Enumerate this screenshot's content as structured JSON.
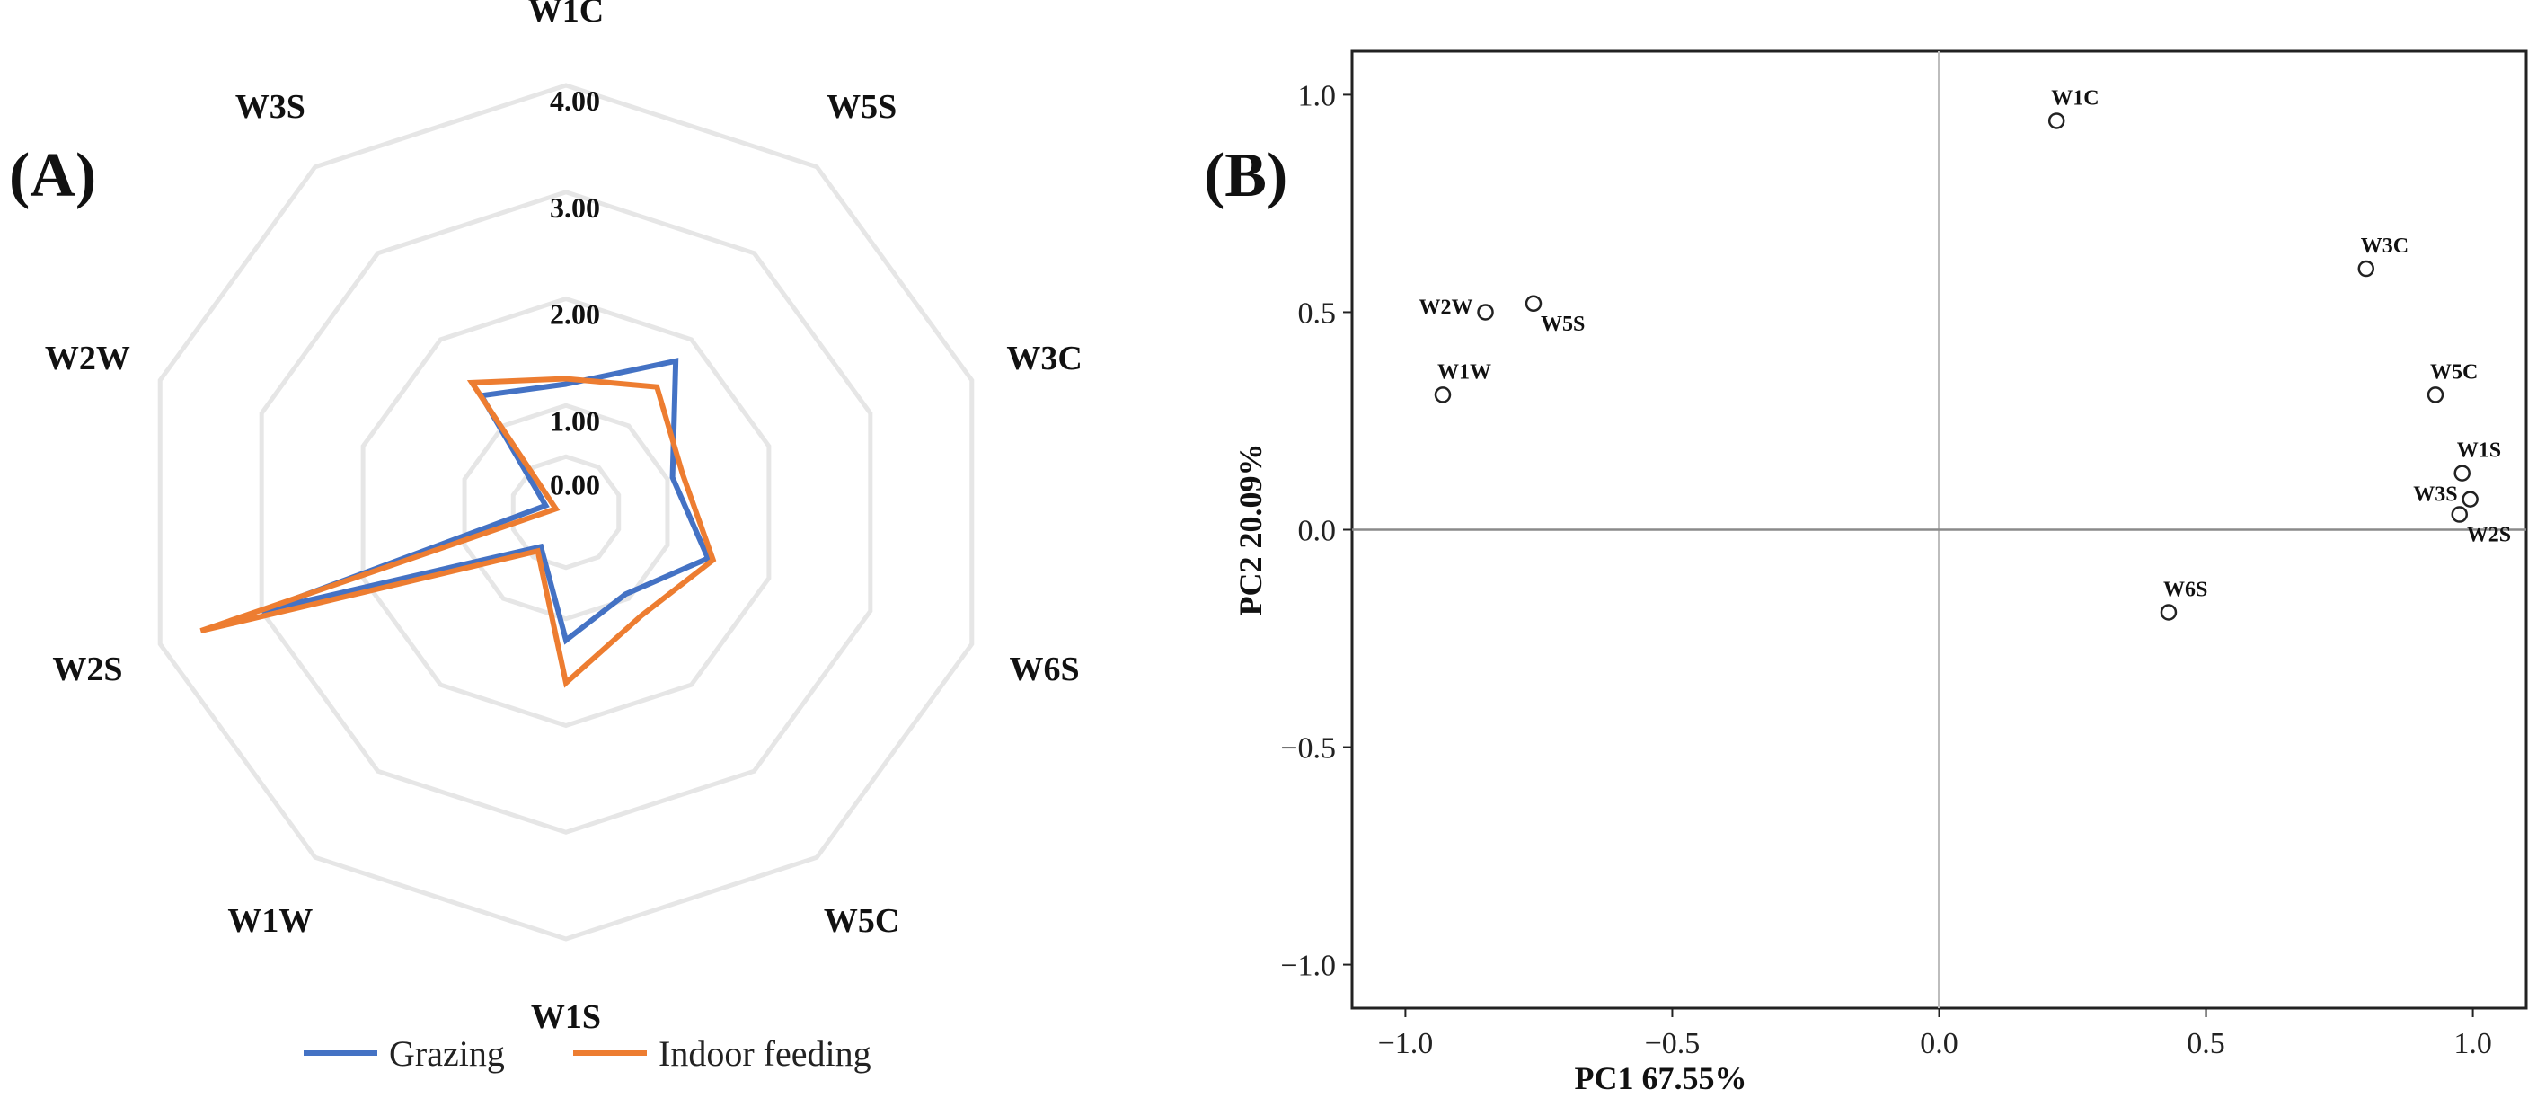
{
  "colors": {
    "grazing": "#4472C4",
    "indoor": "#ED7D31",
    "grid": "#e6e6e6",
    "axis": "#555555",
    "frame": "#222222"
  },
  "chart_data": [
    {
      "panel": "(A)",
      "type": "radar",
      "categories": [
        "W1C",
        "W5S",
        "W3C",
        "W6S",
        "W5C",
        "W1S",
        "W1W",
        "W2S",
        "W2W",
        "W3S"
      ],
      "radial_ticks": [
        "0.00",
        "1.00",
        "2.00",
        "3.00",
        "4.00"
      ],
      "rmax": 4.0,
      "series": [
        {
          "name": "Grazing",
          "color_key": "grazing",
          "values": [
            1.2,
            1.75,
            1.05,
            1.4,
            0.95,
            1.2,
            0.4,
            3.0,
            0.2,
            1.35
          ]
        },
        {
          "name": "Indoor feeding",
          "color_key": "indoor",
          "values": [
            1.25,
            1.45,
            1.15,
            1.45,
            1.2,
            1.6,
            0.45,
            3.6,
            0.1,
            1.5
          ]
        }
      ],
      "legend": "bottom"
    },
    {
      "panel": "(B)",
      "type": "scatter",
      "xlabel": "PC1 67.55%",
      "ylabel": "PC2 20.09%",
      "xlim": [
        -1.1,
        1.1
      ],
      "ylim": [
        -1.1,
        1.1
      ],
      "xticks": [
        "−1.0",
        "−0.5",
        "0.0",
        "0.5",
        "1.0"
      ],
      "yticks": [
        "1.0",
        "0.5",
        "0.0",
        "−0.5",
        "−1.0"
      ],
      "xtick_values": [
        -1.0,
        -0.5,
        0.0,
        0.5,
        1.0
      ],
      "ytick_values": [
        1.0,
        0.5,
        0.0,
        -0.5,
        -1.0
      ],
      "points": [
        {
          "label": "W1C",
          "x": 0.22,
          "y": 0.94,
          "label_pos": "above"
        },
        {
          "label": "W3C",
          "x": 0.8,
          "y": 0.6,
          "label_pos": "above"
        },
        {
          "label": "W5C",
          "x": 0.93,
          "y": 0.31,
          "label_pos": "above"
        },
        {
          "label": "W1S",
          "x": 0.98,
          "y": 0.13,
          "label_pos": "above"
        },
        {
          "label": "W3S",
          "x": 0.995,
          "y": 0.07,
          "label_pos": "left"
        },
        {
          "label": "W2S",
          "x": 0.975,
          "y": 0.035,
          "label_pos": "below-right"
        },
        {
          "label": "W6S",
          "x": 0.43,
          "y": -0.19,
          "label_pos": "above"
        },
        {
          "label": "W2W",
          "x": -0.85,
          "y": 0.5,
          "label_pos": "left"
        },
        {
          "label": "W5S",
          "x": -0.76,
          "y": 0.52,
          "label_pos": "below-right"
        },
        {
          "label": "W1W",
          "x": -0.93,
          "y": 0.31,
          "label_pos": "above"
        }
      ]
    }
  ]
}
